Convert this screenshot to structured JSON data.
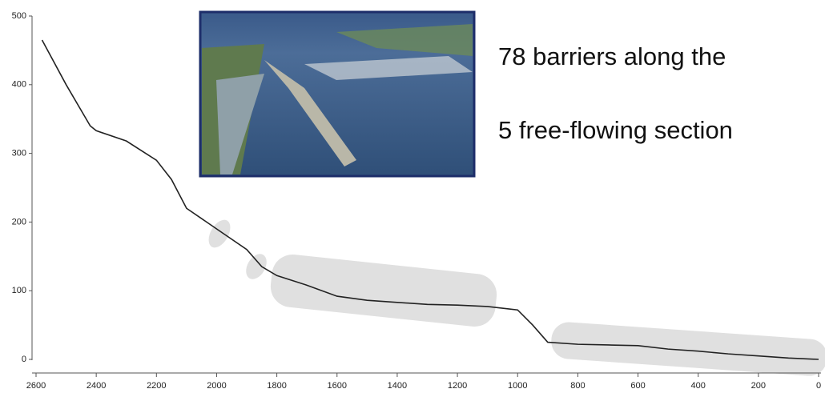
{
  "chart_data": {
    "type": "line",
    "annotations": [
      "78 barriers along the",
      "5 free-flowing section"
    ],
    "x": [
      2580,
      2500,
      2420,
      2400,
      2300,
      2200,
      2150,
      2100,
      2000,
      1900,
      1850,
      1800,
      1700,
      1600,
      1500,
      1400,
      1300,
      1200,
      1100,
      1000,
      950,
      900,
      800,
      700,
      600,
      500,
      400,
      300,
      200,
      100,
      0
    ],
    "values": [
      465,
      400,
      340,
      333,
      318,
      290,
      262,
      220,
      190,
      160,
      135,
      122,
      108,
      92,
      86,
      83,
      80,
      79,
      77,
      72,
      50,
      25,
      22,
      21,
      20,
      15,
      12,
      8,
      5,
      2,
      0
    ],
    "color": "#222222",
    "xlim": [
      2600,
      0
    ],
    "xticks": [
      2600,
      2400,
      2200,
      2000,
      1800,
      1600,
      1400,
      1200,
      1000,
      800,
      600,
      400,
      200,
      0
    ],
    "ylim": [
      0,
      500
    ],
    "yticks": [
      0,
      100,
      200,
      300,
      400,
      500
    ]
  }
}
